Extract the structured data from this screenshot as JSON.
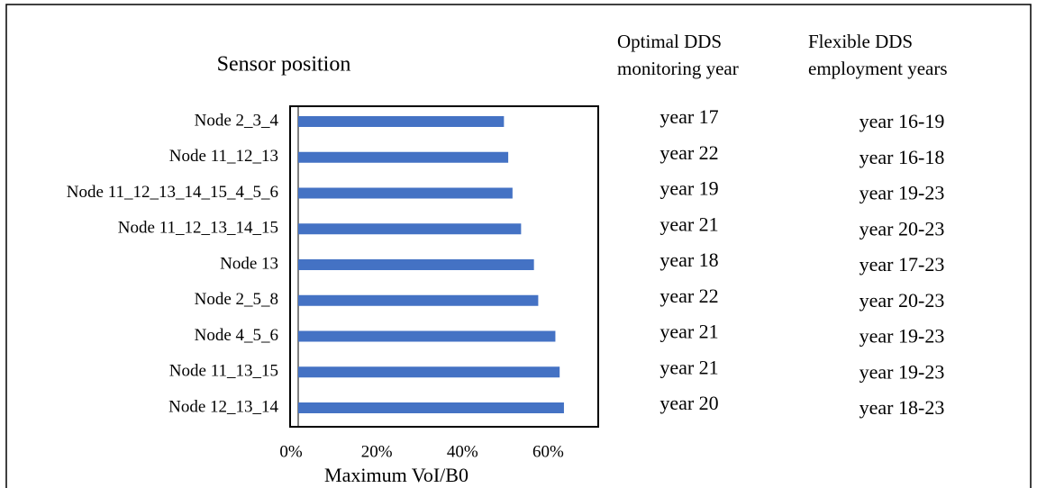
{
  "chart_data": {
    "type": "barh",
    "title": "Sensor position",
    "x_label": "Maximum VoI/B0",
    "categories": [
      "Node 2_3_4",
      "Node 11_12_13",
      "Node 11_12_13_14_15_4_5_6",
      "Node 11_12_13_14_15",
      "Node 13",
      "Node 2_5_8",
      "Node 4_5_6",
      "Node 11_13_15",
      "Node 12_13_14"
    ],
    "values": [
      48,
      49,
      50,
      52,
      55,
      56,
      60,
      61,
      62
    ],
    "color": "#4472c4",
    "xlim": [
      0,
      70
    ],
    "xticks": [
      {
        "value": 0,
        "label": "0%"
      },
      {
        "value": 20,
        "label": "20%"
      },
      {
        "value": 40,
        "label": "40%"
      },
      {
        "value": 60,
        "label": "60%"
      }
    ]
  },
  "table": {
    "columns": [
      [
        "Optimal DDS",
        "monitoring year"
      ],
      [
        "Flexible DDS",
        "employment years"
      ]
    ],
    "rows": [
      [
        "year 17",
        "year 16-19"
      ],
      [
        "year 22",
        "year 16-18"
      ],
      [
        "year 19",
        "year 19-23"
      ],
      [
        "year 21",
        "year 20-23"
      ],
      [
        "year 18",
        "year 17-23"
      ],
      [
        "year 22",
        "year 20-23"
      ],
      [
        "year 21",
        "year 19-23"
      ],
      [
        "year 21",
        "year 19-23"
      ],
      [
        "year 20",
        "year 18-23"
      ]
    ]
  }
}
